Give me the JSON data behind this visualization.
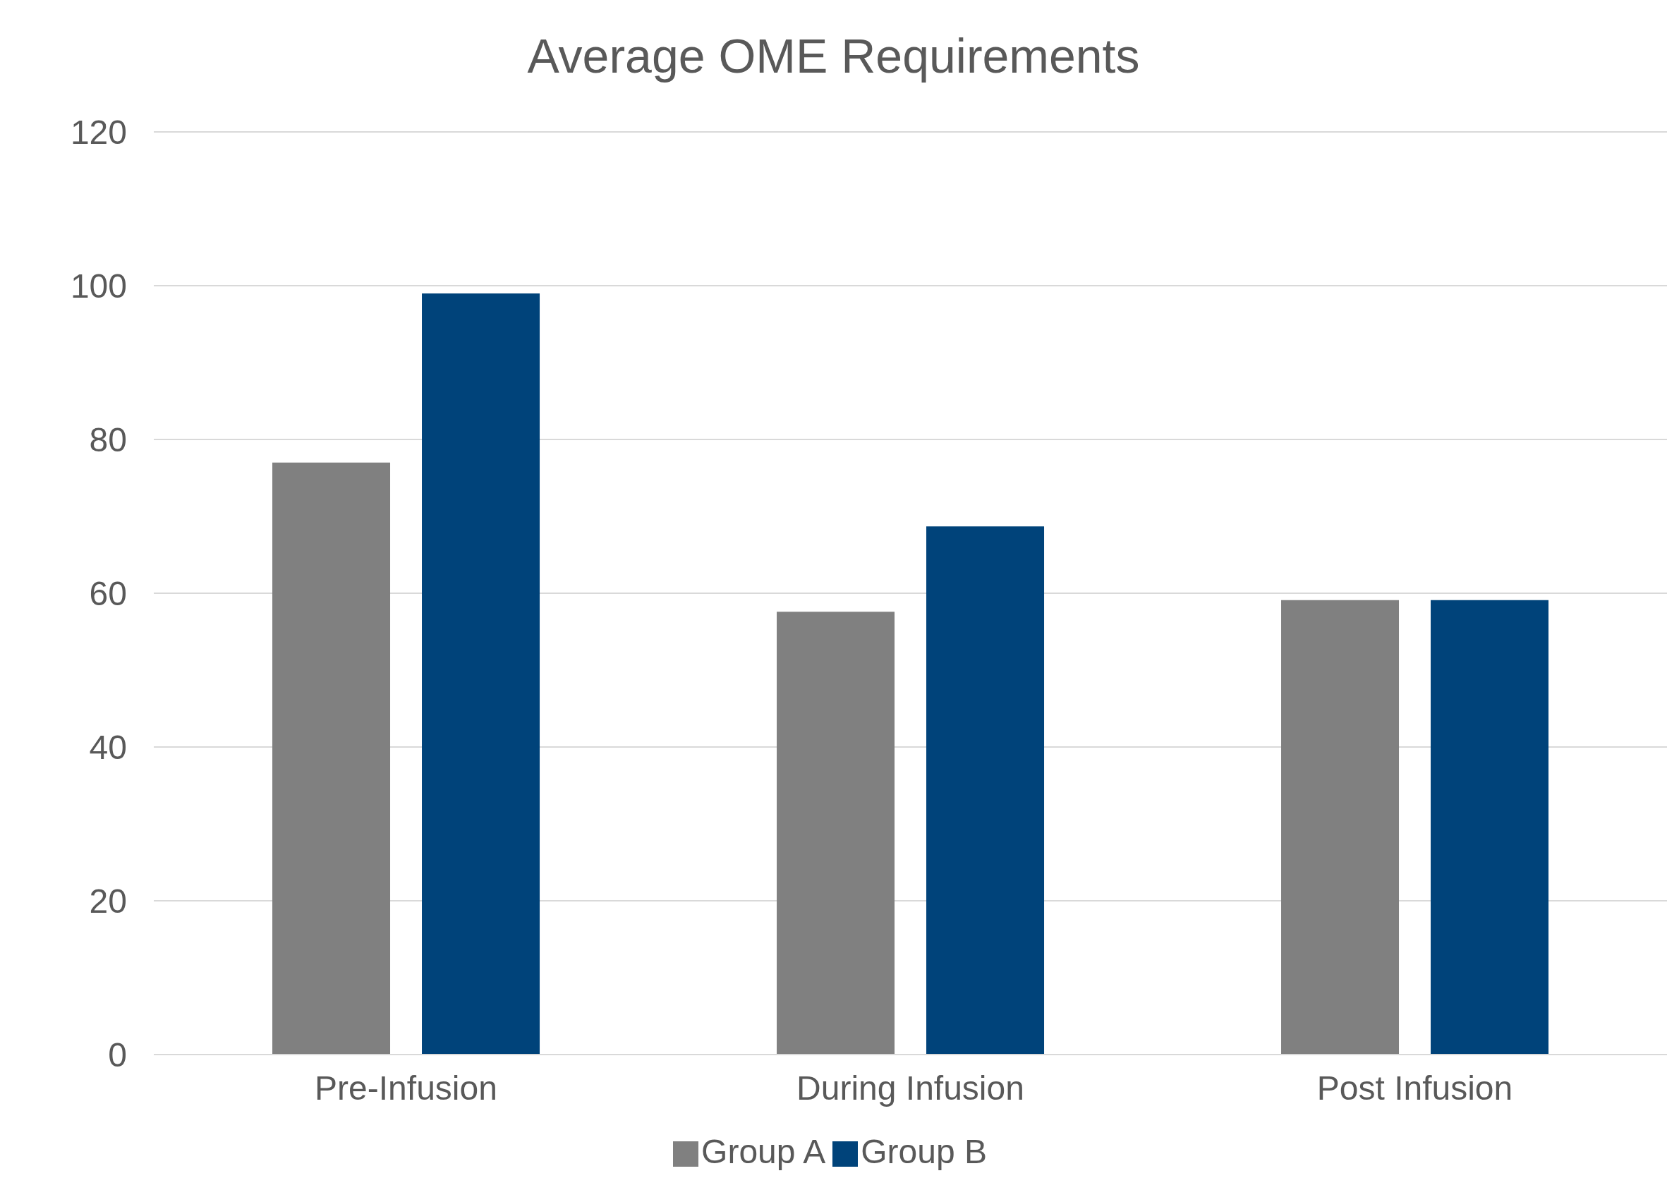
{
  "chart_data": {
    "type": "bar",
    "title": "Average OME Requirements",
    "categories": [
      "Pre-Infusion",
      "During Infusion",
      "Post Infusion"
    ],
    "series": [
      {
        "name": "Group A",
        "color": "#808080",
        "values": [
          77,
          57.6,
          59.1
        ]
      },
      {
        "name": "Group B",
        "color": "#00437a",
        "values": [
          99,
          68.7,
          59.1
        ]
      }
    ],
    "ylim": [
      0,
      120
    ],
    "yticks": [
      0,
      20,
      40,
      60,
      80,
      100,
      120
    ],
    "grid": "y",
    "legend": "bottom"
  }
}
